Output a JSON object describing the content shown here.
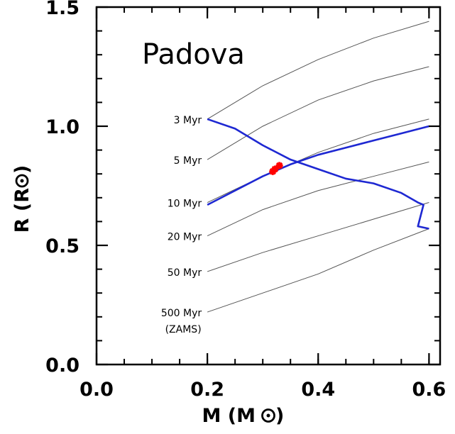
{
  "chart_data": {
    "type": "line",
    "title": "",
    "annotation": "Padova",
    "xlabel": "M (M",
    "ylabel": "R (R",
    "label_symbol": "sun-symbol",
    "xlim": [
      0.0,
      0.62
    ],
    "ylim": [
      0.0,
      1.5
    ],
    "xticks": [
      "0.0",
      "0.2",
      "0.4",
      "0.6"
    ],
    "yticks": [
      "0.0",
      "0.5",
      "1.0",
      "1.5"
    ],
    "grid": false,
    "colors": {
      "isochrone": "#555555",
      "track": "#1e28d2",
      "points": "#ff0000",
      "axes": "#000000"
    },
    "isochrones": [
      {
        "label": "3 Myr",
        "x": [
          0.2,
          0.3,
          0.4,
          0.5,
          0.6
        ],
        "y": [
          1.03,
          1.17,
          1.28,
          1.37,
          1.44
        ]
      },
      {
        "label": "5 Myr",
        "x": [
          0.2,
          0.3,
          0.4,
          0.5,
          0.6
        ],
        "y": [
          0.86,
          1.0,
          1.11,
          1.19,
          1.25
        ]
      },
      {
        "label": "10 Myr",
        "x": [
          0.2,
          0.3,
          0.4,
          0.5,
          0.6
        ],
        "y": [
          0.68,
          0.79,
          0.89,
          0.97,
          1.03
        ]
      },
      {
        "label": "20 Myr",
        "x": [
          0.2,
          0.3,
          0.4,
          0.5,
          0.6
        ],
        "y": [
          0.54,
          0.65,
          0.73,
          0.79,
          0.85
        ]
      },
      {
        "label": "50 Myr",
        "x": [
          0.2,
          0.3,
          0.4,
          0.5,
          0.6
        ],
        "y": [
          0.39,
          0.47,
          0.54,
          0.61,
          0.68
        ]
      },
      {
        "label": "500 Myr",
        "sublabel": "(ZAMS)",
        "x": [
          0.2,
          0.3,
          0.4,
          0.5,
          0.6
        ],
        "y": [
          0.22,
          0.3,
          0.38,
          0.48,
          0.57
        ]
      }
    ],
    "tracks": [
      {
        "x": [
          0.2,
          0.25,
          0.3,
          0.35,
          0.4,
          0.45,
          0.5,
          0.55,
          0.6
        ],
        "y": [
          0.67,
          0.73,
          0.79,
          0.84,
          0.88,
          0.91,
          0.94,
          0.97,
          1.0
        ]
      },
      {
        "x": [
          0.2,
          0.25,
          0.3,
          0.35,
          0.4,
          0.45,
          0.5,
          0.55,
          0.58,
          0.59,
          0.58,
          0.6
        ],
        "y": [
          1.03,
          0.99,
          0.92,
          0.86,
          0.82,
          0.78,
          0.76,
          0.72,
          0.68,
          0.67,
          0.58,
          0.57
        ]
      }
    ],
    "points": [
      {
        "x": 0.318,
        "y": 0.81
      },
      {
        "x": 0.322,
        "y": 0.82
      },
      {
        "x": 0.33,
        "y": 0.835
      }
    ]
  }
}
